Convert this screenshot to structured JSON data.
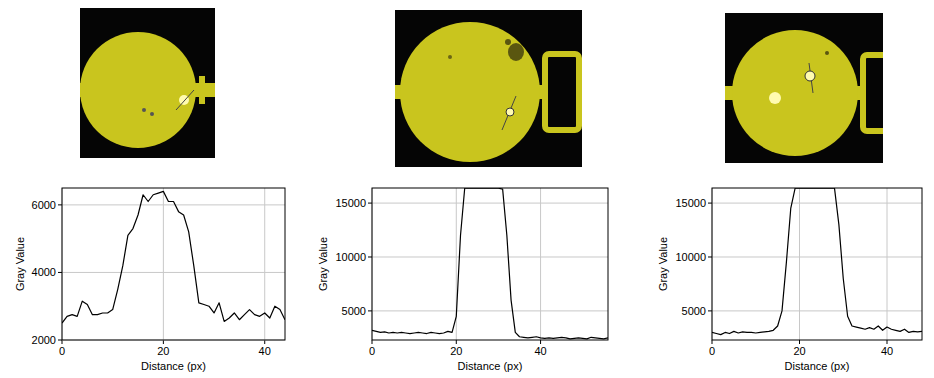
{
  "chart_data": [
    {
      "type": "line",
      "x_label": "Distance (px)",
      "y_label": "Gray Value",
      "color": "#000000",
      "grid": true,
      "x": [
        0,
        1,
        2,
        3,
        4,
        5,
        6,
        7,
        8,
        9,
        10,
        11,
        12,
        13,
        14,
        15,
        16,
        17,
        18,
        19,
        20,
        21,
        22,
        23,
        24,
        25,
        26,
        27,
        28,
        29,
        30,
        31,
        32,
        33,
        34,
        35,
        36,
        37,
        38,
        39,
        40,
        41,
        42,
        43,
        44
      ],
      "values": [
        2500,
        2700,
        2750,
        2700,
        3150,
        3050,
        2750,
        2750,
        2800,
        2800,
        2900,
        3500,
        4200,
        5100,
        5300,
        5700,
        6300,
        6100,
        6300,
        6350,
        6400,
        6100,
        6100,
        5800,
        5700,
        5200,
        4200,
        3100,
        3050,
        3000,
        2800,
        3100,
        2550,
        2650,
        2800,
        2600,
        2750,
        2900,
        2750,
        2700,
        2800,
        2650,
        3000,
        2900,
        2600
      ],
      "xlim": [
        0,
        44
      ],
      "ylim": [
        2000,
        6500
      ],
      "xticks": [
        0,
        20,
        40
      ],
      "yticks": [
        2000,
        4000,
        6000
      ]
    },
    {
      "type": "line",
      "x_label": "Distance (px)",
      "y_label": "Gray Value",
      "color": "#000000",
      "grid": true,
      "x": [
        0,
        1,
        2,
        3,
        4,
        5,
        6,
        7,
        8,
        9,
        10,
        11,
        12,
        13,
        14,
        15,
        16,
        17,
        18,
        19,
        20,
        21,
        22,
        23,
        24,
        25,
        26,
        27,
        28,
        29,
        30,
        31,
        32,
        33,
        34,
        35,
        36,
        37,
        38,
        39,
        40,
        41,
        42,
        43,
        44,
        45,
        46,
        47,
        48,
        49,
        50,
        51,
        52,
        53,
        54,
        55,
        56
      ],
      "values": [
        3200,
        3100,
        3000,
        3050,
        2950,
        3000,
        2950,
        3000,
        2950,
        2900,
        2950,
        3000,
        2950,
        2900,
        3000,
        2950,
        2900,
        2950,
        3100,
        3000,
        4500,
        12000,
        16383,
        16383,
        16383,
        16383,
        16383,
        16383,
        16383,
        16383,
        16383,
        16300,
        12000,
        6000,
        3000,
        2600,
        2550,
        2500,
        2550,
        2600,
        2500,
        2450,
        2500,
        2450,
        2500,
        2550,
        2500,
        2400,
        2450,
        2500,
        2450,
        2400,
        2550,
        2500,
        2450,
        2400,
        2500
      ],
      "xlim": [
        0,
        56
      ],
      "ylim": [
        2300,
        16400
      ],
      "xticks": [
        0,
        20,
        40
      ],
      "yticks": [
        5000,
        10000,
        15000
      ]
    },
    {
      "type": "line",
      "x_label": "Distance (px)",
      "y_label": "Gray Value",
      "color": "#000000",
      "grid": true,
      "x": [
        0,
        1,
        2,
        3,
        4,
        5,
        6,
        7,
        8,
        9,
        10,
        11,
        12,
        13,
        14,
        15,
        16,
        17,
        18,
        19,
        20,
        21,
        22,
        23,
        24,
        25,
        26,
        27,
        28,
        29,
        30,
        31,
        32,
        33,
        34,
        35,
        36,
        37,
        38,
        39,
        40,
        41,
        42,
        43,
        44,
        45,
        46,
        47,
        48
      ],
      "values": [
        3000,
        2900,
        2800,
        3000,
        2900,
        3100,
        2950,
        3050,
        3000,
        3000,
        2950,
        3000,
        3050,
        3100,
        3200,
        3600,
        5000,
        9500,
        14500,
        16383,
        16383,
        16383,
        16383,
        16383,
        16383,
        16383,
        16383,
        16383,
        16383,
        13000,
        8000,
        4500,
        3600,
        3500,
        3400,
        3300,
        3450,
        3300,
        3600,
        3200,
        3500,
        3300,
        3200,
        3100,
        3300,
        3000,
        3100,
        3050,
        3100
      ],
      "xlim": [
        0,
        48
      ],
      "ylim": [
        2300,
        16400
      ],
      "xticks": [
        0,
        20,
        40
      ],
      "yticks": [
        5000,
        10000,
        15000
      ]
    }
  ]
}
